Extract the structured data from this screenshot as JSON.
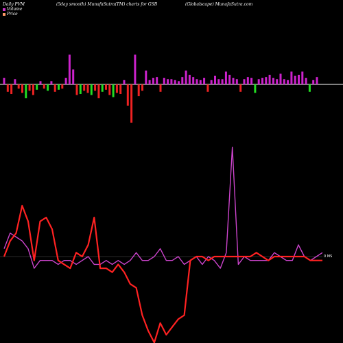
{
  "header": {
    "left": "Daily PVM",
    "middle": "(5day smooth) MunafaSutra(TM) charts for GSB",
    "right": "(Globalscape) MunafaSutra.com"
  },
  "legend": [
    {
      "label": "Volume",
      "color": "#cc33cc"
    },
    {
      "label": "Price",
      "color": "#ff9966"
    }
  ],
  "chart_data": {
    "type": "line",
    "x_count": 54,
    "baseline_label": "0 MS",
    "colors": {
      "volume_up": "#cc22cc",
      "volume_down_red": "#ee2222",
      "volume_down_green": "#22dd22",
      "volume_line": "#cc44cc",
      "price_line": "#ff2222",
      "zero_line": "#ffffff"
    },
    "volume_bars": {
      "values": [
        6,
        -7,
        -9,
        5,
        -4,
        -8,
        -13,
        -6,
        -10,
        -5,
        3,
        -4,
        -6,
        3,
        -7,
        -5,
        -4,
        6,
        28,
        14,
        -10,
        -9,
        -6,
        -8,
        -10,
        -6,
        -13,
        -7,
        -5,
        -10,
        -12,
        -8,
        -9,
        4,
        -20,
        -36,
        28,
        -11,
        -6,
        13,
        4,
        6,
        7,
        -7,
        6,
        5,
        5,
        4,
        3,
        7,
        13,
        9,
        7,
        5,
        4,
        6,
        -7,
        4,
        8,
        5,
        5,
        12,
        9,
        6,
        5,
        -7,
        5,
        7,
        6,
        -8,
        5,
        6,
        7,
        9,
        6,
        5,
        10,
        5,
        4,
        12,
        8,
        9,
        12,
        6,
        -7,
        4,
        7
      ],
      "note": ""
    },
    "series": [
      {
        "name": "Volume",
        "values": [
          2,
          6,
          5,
          4,
          2,
          -3,
          -1,
          -1,
          -1,
          -2,
          -1,
          -1,
          -2,
          -1,
          0,
          -2,
          -2,
          -1,
          -2,
          -1,
          -2,
          -1,
          1,
          -1,
          -1,
          0,
          2,
          -1,
          -1,
          0,
          -2,
          -1,
          0,
          -2,
          0,
          -1,
          -3,
          1,
          28,
          -2,
          0,
          -1,
          -1,
          -1,
          -1,
          1,
          0,
          -1,
          -1,
          3,
          0,
          -1,
          0,
          1
        ]
      },
      {
        "name": "Price",
        "values": [
          0,
          4,
          6,
          13,
          9,
          -1,
          9,
          10,
          7,
          -1,
          -2,
          -3,
          1,
          0,
          3,
          10,
          -3,
          -3,
          -4,
          -2,
          -4,
          -7,
          -8,
          -15,
          -19,
          -22,
          -17,
          -20,
          -18,
          -16,
          -15,
          -1,
          0,
          0,
          -1,
          0,
          0,
          0,
          0,
          0,
          0,
          0,
          1,
          0,
          -1,
          0,
          0,
          0,
          0,
          0,
          0,
          -1,
          -1,
          -1
        ]
      }
    ]
  }
}
